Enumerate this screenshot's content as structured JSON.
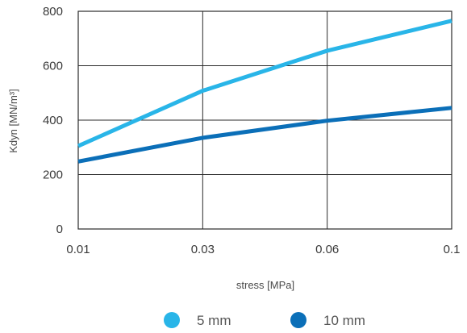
{
  "chart_data": {
    "type": "line",
    "x": [
      "0.01",
      "0.03",
      "0.06",
      "0.1"
    ],
    "xlabel": "stress [MPa]",
    "ylabel": "Kdyn [MN/m³]",
    "ylim": [
      0,
      800
    ],
    "yticks": [
      "0",
      "200",
      "400",
      "600",
      "800"
    ],
    "grid": true,
    "legend_position": "bottom",
    "series": [
      {
        "name": "5 mm",
        "values": [
          305,
          508,
          655,
          765
        ],
        "color": "#29b5e8"
      },
      {
        "name": "10 mm",
        "values": [
          248,
          335,
          398,
          445
        ],
        "color": "#0b6fb8"
      }
    ]
  }
}
